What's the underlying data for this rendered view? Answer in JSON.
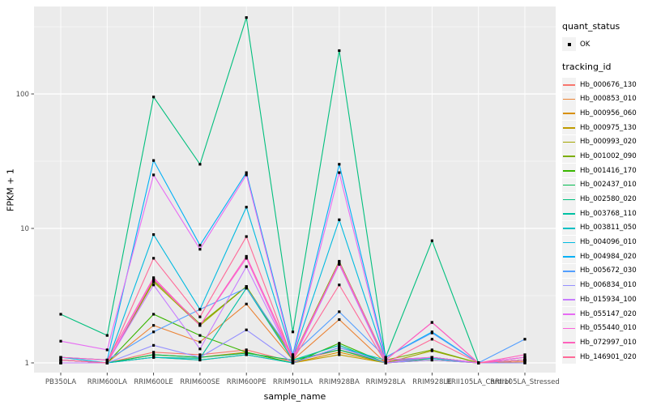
{
  "legend": {
    "quant_status_title": "quant_status",
    "quant_status_items": [
      {
        "label": "OK",
        "marker": "black-square-point"
      }
    ],
    "tracking_title": "tracking_id"
  },
  "chart_data": {
    "type": "line",
    "title": "",
    "xlabel": "sample_name",
    "ylabel": "FPKM + 1",
    "y_scale": "log10",
    "y_ticks": [
      1,
      10,
      100
    ],
    "y_minor_gridlines": [
      3.162,
      31.62,
      316.2
    ],
    "ylim_fpkm_plus1": [
      0.85,
      450
    ],
    "grid": "ggplot-gray-panel-white-gridlines",
    "legend_position": "right",
    "point_marker": "small black square (quant_status = OK)",
    "panel_bg": "#ebebeb",
    "gridline_color": "#ffffff",
    "tick_label_color": "#4d4d4d",
    "categories": [
      "PB350LA",
      "RRIM600LA",
      "RRIM600LE",
      "RRIM600SE",
      "RRIM600PE",
      "RRIM901LA",
      "RRIM928BA",
      "RRIM928LA",
      "RRIM928LE",
      "RRII105LA_Control",
      "RRII105LA_Stressed"
    ],
    "series": [
      {
        "name": "Hb_000676_130",
        "color": "#F8766D",
        "values": [
          1.05,
          1.0,
          1.2,
          1.15,
          1.25,
          1.02,
          1.25,
          1.02,
          1.1,
          1.0,
          1.05
        ]
      },
      {
        "name": "Hb_000853_010",
        "color": "#EB8335",
        "values": [
          1.0,
          1.0,
          1.9,
          1.43,
          2.74,
          1.05,
          2.1,
          1.0,
          1.1,
          1.0,
          1.02
        ]
      },
      {
        "name": "Hb_000956_060",
        "color": "#D89000",
        "values": [
          1.0,
          1.0,
          1.15,
          1.1,
          1.2,
          1.0,
          1.2,
          1.0,
          1.05,
          1.0,
          1.0
        ]
      },
      {
        "name": "Hb_000975_130",
        "color": "#C09B00",
        "values": [
          1.0,
          1.0,
          1.1,
          1.05,
          1.15,
          1.0,
          1.15,
          1.0,
          1.05,
          1.0,
          1.0
        ]
      },
      {
        "name": "Hb_000993_020",
        "color": "#A3A500",
        "values": [
          1.0,
          1.0,
          4.0,
          1.9,
          3.7,
          1.05,
          5.6,
          1.0,
          1.23,
          1.0,
          1.05
        ]
      },
      {
        "name": "Hb_001002_090",
        "color": "#7CAE00",
        "values": [
          1.05,
          1.0,
          4.1,
          1.95,
          3.7,
          1.1,
          5.7,
          1.05,
          1.25,
          1.0,
          1.05
        ]
      },
      {
        "name": "Hb_001416_170",
        "color": "#39B600",
        "values": [
          1.0,
          1.0,
          2.3,
          1.6,
          1.2,
          1.0,
          1.4,
          1.0,
          1.1,
          1.0,
          1.05
        ]
      },
      {
        "name": "Hb_002437_010",
        "color": "#00BB4E",
        "values": [
          1.05,
          1.0,
          1.15,
          1.1,
          1.18,
          1.05,
          1.25,
          1.0,
          1.08,
          1.0,
          1.05
        ]
      },
      {
        "name": "Hb_002580_020",
        "color": "#00BF7D",
        "values": [
          2.3,
          1.6,
          95,
          30,
          370,
          1.7,
          210,
          1.1,
          8.1,
          1.0,
          1.0
        ]
      },
      {
        "name": "Hb_003768_110",
        "color": "#00C1A3",
        "values": [
          1.0,
          1.0,
          1.1,
          1.08,
          3.6,
          1.05,
          1.35,
          1.0,
          1.1,
          1.0,
          1.05
        ]
      },
      {
        "name": "Hb_003811_050",
        "color": "#00BFC4",
        "values": [
          1.05,
          1.0,
          1.1,
          1.05,
          1.15,
          1.0,
          1.3,
          1.05,
          1.08,
          1.0,
          1.1
        ]
      },
      {
        "name": "Hb_004096_010",
        "color": "#00BAE0",
        "values": [
          1.1,
          1.0,
          9.0,
          2.5,
          14.4,
          1.1,
          11.6,
          1.05,
          1.1,
          1.0,
          1.05
        ]
      },
      {
        "name": "Hb_004984_020",
        "color": "#00B0F6",
        "values": [
          1.1,
          1.05,
          32,
          7.5,
          26,
          1.15,
          30,
          1.1,
          1.7,
          1.0,
          1.05
        ]
      },
      {
        "name": "Hb_005672_030",
        "color": "#529EFF",
        "values": [
          1.1,
          1.05,
          1.7,
          2.5,
          3.6,
          1.15,
          2.4,
          1.1,
          1.67,
          1.0,
          1.5
        ]
      },
      {
        "name": "Hb_006834_010",
        "color": "#9590FF",
        "values": [
          1.0,
          1.0,
          1.35,
          1.1,
          1.76,
          1.0,
          1.3,
          1.0,
          1.05,
          1.0,
          1.0
        ]
      },
      {
        "name": "Hb_015934_100",
        "color": "#C77CFF",
        "values": [
          1.0,
          1.0,
          3.8,
          1.27,
          5.2,
          1.05,
          5.4,
          1.0,
          1.1,
          1.0,
          1.05
        ]
      },
      {
        "name": "Hb_055147_020",
        "color": "#E76BF3",
        "values": [
          1.45,
          1.25,
          25,
          7.0,
          25,
          1.1,
          26,
          1.05,
          2.0,
          1.0,
          1.1
        ]
      },
      {
        "name": "Hb_055440_010",
        "color": "#FA62DB",
        "values": [
          1.05,
          1.0,
          4.2,
          1.9,
          6.0,
          1.05,
          5.6,
          1.05,
          1.1,
          1.0,
          1.1
        ]
      },
      {
        "name": "Hb_072997_010",
        "color": "#FF62BC",
        "values": [
          1.1,
          1.05,
          4.3,
          1.9,
          6.2,
          1.1,
          5.5,
          1.05,
          2.0,
          1.0,
          1.15
        ]
      },
      {
        "name": "Hb_146901_020",
        "color": "#FF6A98",
        "values": [
          1.05,
          1.0,
          6.0,
          2.2,
          8.7,
          1.05,
          3.8,
          1.0,
          1.5,
          1.0,
          1.05
        ]
      }
    ]
  }
}
